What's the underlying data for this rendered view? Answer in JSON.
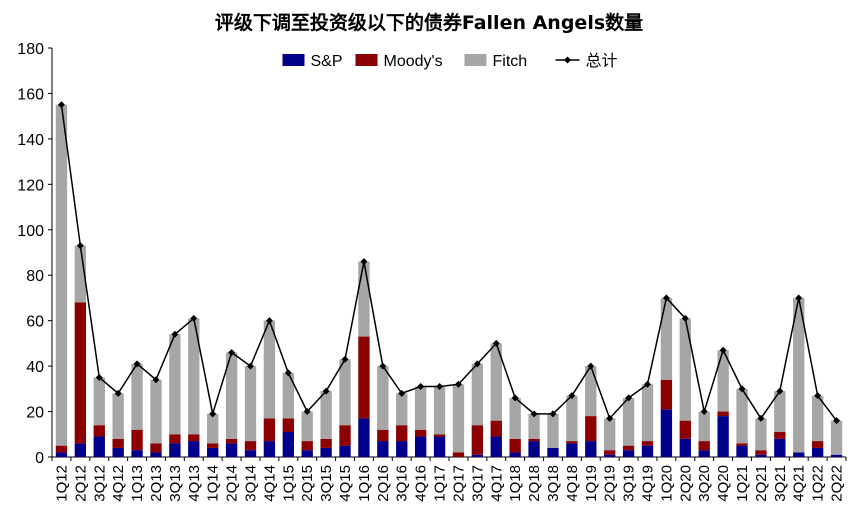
{
  "chart_data": {
    "type": "bar",
    "stacked": true,
    "title": "评级下调至投资级以下的债券Fallen Angels数量",
    "xlabel": "",
    "ylabel": "",
    "ylim": [
      0,
      180
    ],
    "yticks": [
      0,
      20,
      40,
      60,
      80,
      100,
      120,
      140,
      160,
      180
    ],
    "grid": false,
    "legend_position": "top",
    "categories": [
      "1Q12",
      "2Q12",
      "3Q12",
      "4Q12",
      "1Q13",
      "2Q13",
      "3Q13",
      "4Q13",
      "1Q14",
      "2Q14",
      "3Q14",
      "4Q14",
      "1Q15",
      "2Q15",
      "3Q15",
      "4Q15",
      "1Q16",
      "2Q16",
      "3Q16",
      "4Q16",
      "1Q17",
      "2Q17",
      "3Q17",
      "4Q17",
      "1Q18",
      "2Q18",
      "3Q18",
      "4Q18",
      "1Q19",
      "2Q19",
      "3Q19",
      "4Q19",
      "1Q20",
      "2Q20",
      "3Q20",
      "4Q20",
      "1Q21",
      "2Q21",
      "3Q21",
      "4Q21",
      "1Q22",
      "2Q22"
    ],
    "series": [
      {
        "name": "S&P",
        "type": "bar",
        "color": "#00008B",
        "values": [
          2,
          6,
          9,
          4,
          3,
          2,
          6,
          7,
          4,
          6,
          3,
          7,
          11,
          3,
          4,
          5,
          17,
          7,
          7,
          9,
          9,
          0,
          1,
          9,
          2,
          7,
          4,
          6,
          7,
          1,
          3,
          5,
          21,
          8,
          3,
          18,
          5,
          1,
          8,
          2,
          4,
          1
        ]
      },
      {
        "name": "Moody's",
        "type": "bar",
        "color": "#8B0000",
        "values": [
          3,
          62,
          5,
          4,
          9,
          4,
          4,
          3,
          2,
          2,
          4,
          10,
          6,
          4,
          4,
          9,
          36,
          5,
          7,
          3,
          1,
          2,
          13,
          7,
          6,
          1,
          0,
          1,
          11,
          2,
          2,
          2,
          13,
          8,
          4,
          2,
          1,
          2,
          3,
          0,
          3,
          0
        ]
      },
      {
        "name": "Fitch",
        "type": "bar",
        "color": "#A6A6A6",
        "values": [
          150,
          25,
          21,
          20,
          29,
          28,
          44,
          51,
          13,
          38,
          33,
          43,
          20,
          13,
          21,
          29,
          33,
          28,
          14,
          19,
          21,
          30,
          27,
          34,
          18,
          11,
          15,
          20,
          22,
          14,
          21,
          25,
          36,
          45,
          13,
          27,
          24,
          14,
          18,
          68,
          20,
          15
        ]
      },
      {
        "name": "总计",
        "type": "line",
        "color": "#000000",
        "values": [
          155,
          93,
          35,
          28,
          41,
          34,
          54,
          61,
          19,
          46,
          40,
          60,
          37,
          20,
          29,
          43,
          86,
          40,
          28,
          31,
          31,
          32,
          41,
          50,
          26,
          19,
          19,
          27,
          40,
          17,
          26,
          32,
          70,
          61,
          20,
          47,
          30,
          17,
          29,
          70,
          27,
          16
        ]
      }
    ]
  }
}
